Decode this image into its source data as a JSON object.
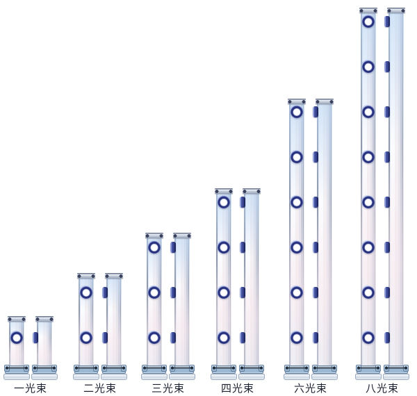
{
  "figure": {
    "background": "#ffffff"
  },
  "products": [
    {
      "label": "一光束",
      "beams": 1
    },
    {
      "label": "二光束",
      "beams": 2
    },
    {
      "label": "三光束",
      "beams": 3
    },
    {
      "label": "四光束",
      "beams": 4
    },
    {
      "label": "六光束",
      "beams": 6
    },
    {
      "label": "八光束",
      "beams": 8
    }
  ],
  "colors": {
    "background": "#ffffff",
    "lens_ring": "#27307c",
    "side_tab": "#36428c",
    "tower_blue_tint": "#bcd6f2",
    "tower_pink_tint": "#f6e6eb",
    "base_bracket": "#9cb8d2",
    "label_text": "#1e2230"
  }
}
